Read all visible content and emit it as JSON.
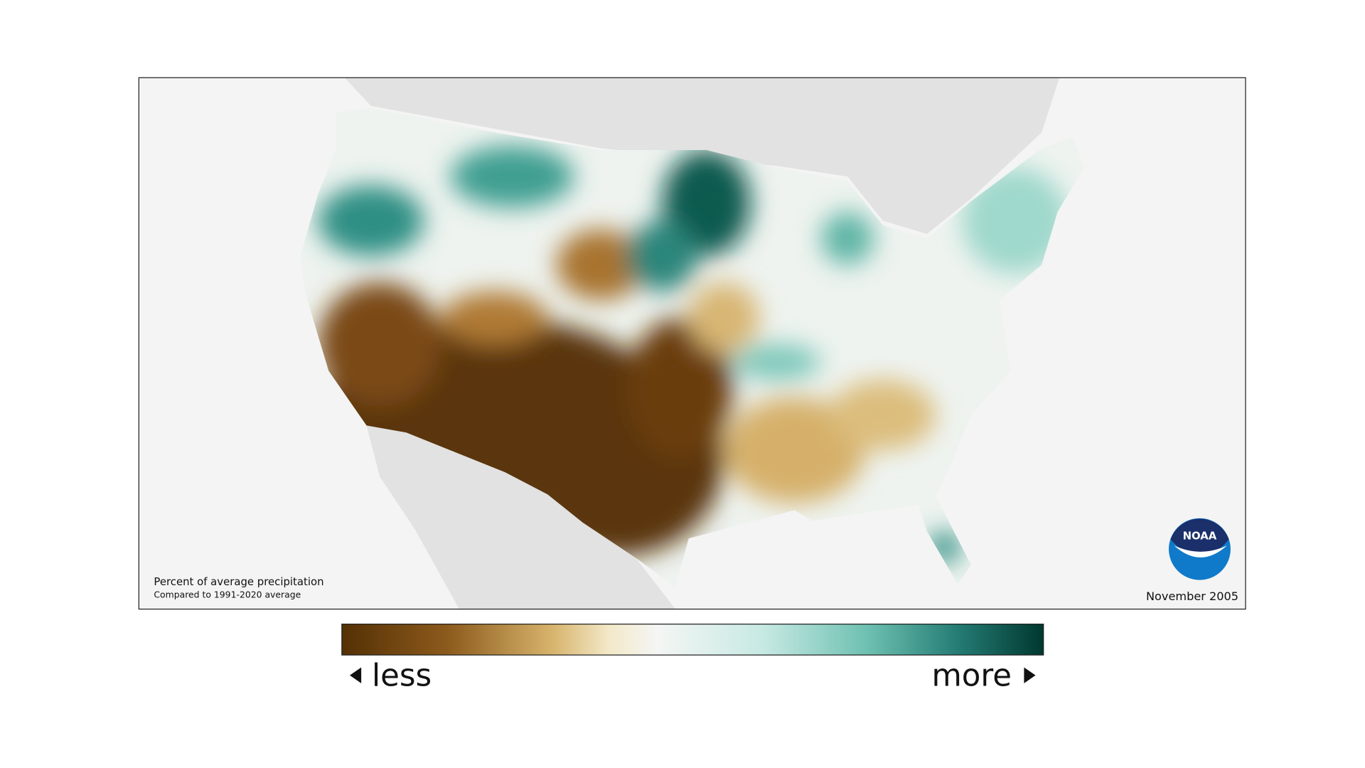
{
  "caption": {
    "title": "Percent of average precipitation",
    "subtitle": "Compared to 1991-2020 average"
  },
  "date": "November 2005",
  "legend": {
    "low": "less",
    "high": "more"
  },
  "logo": "NOAA"
}
